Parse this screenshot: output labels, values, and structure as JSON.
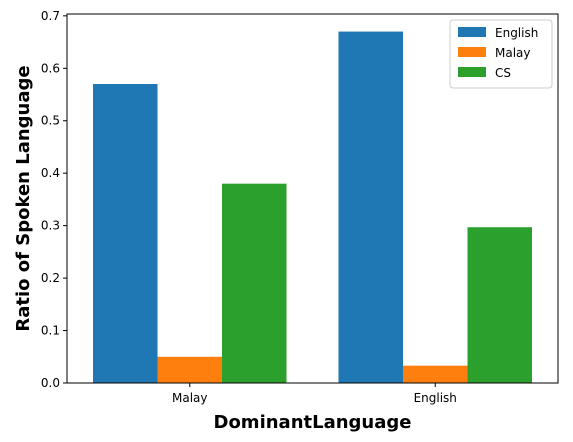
{
  "chart_data": {
    "type": "bar",
    "categories": [
      "Malay",
      "English"
    ],
    "series": [
      {
        "name": "English",
        "color": "#1f77b4",
        "values": [
          0.57,
          0.67
        ]
      },
      {
        "name": "Malay",
        "color": "#ff7f0e",
        "values": [
          0.05,
          0.033
        ]
      },
      {
        "name": "CS",
        "color": "#2ca02c",
        "values": [
          0.38,
          0.297
        ]
      }
    ],
    "xlabel": "DominantLanguage",
    "ylabel": "Ratio of Spoken Language",
    "ylim": [
      0,
      0.7035
    ],
    "yticks": [
      "0.0",
      "0.1",
      "0.2",
      "0.3",
      "0.4",
      "0.5",
      "0.6",
      "0.7"
    ],
    "legend_position": "top-right",
    "grid": false
  }
}
